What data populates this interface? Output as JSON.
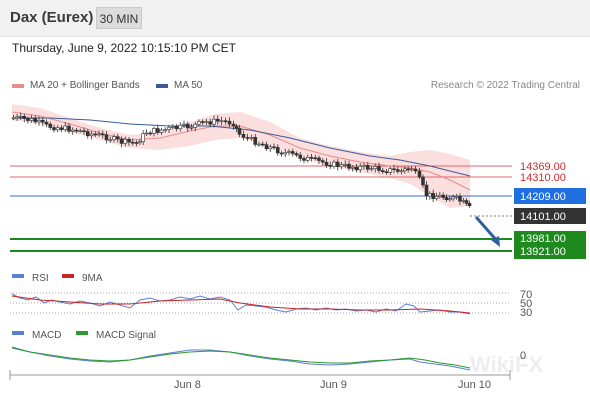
{
  "header": {
    "title": "Dax (Eurex)",
    "timeframe": "30 MIN"
  },
  "timestamp": "Thursday, June 9, 2022 10:15:10 PM CET",
  "legend": {
    "ma_bb": "MA 20 + Bollinger Bands",
    "ma_bb_color": "#e88c8c",
    "ma50": "MA 50",
    "ma50_color": "#3a5a9a"
  },
  "credit": "Research © 2022 Trading Central",
  "levels": [
    {
      "label": "14369.00",
      "style": "resistance",
      "color": "#d22b2b"
    },
    {
      "label": "14310.00",
      "style": "resistance",
      "color": "#d22b2b"
    },
    {
      "label": "14209.00",
      "style": "pivot",
      "color": "#1f6fe0"
    },
    {
      "label": "14101.00",
      "style": "last",
      "color": "#333333"
    },
    {
      "label": "13981.00",
      "style": "support",
      "color": "#1e8a1e"
    },
    {
      "label": "13921.00",
      "style": "support",
      "color": "#1e8a1e"
    }
  ],
  "rsi_panel": {
    "rsi_label": "RSI",
    "rsi_color": "#5a7fd4",
    "ma_label": "9MA",
    "ma_color": "#cc2222",
    "levels": [
      "70",
      "50",
      "30"
    ]
  },
  "macd_panel": {
    "macd_label": "MACD",
    "macd_color": "#5a7fd4",
    "signal_label": "MACD Signal",
    "signal_color": "#2a9a2a",
    "zero_label": "0"
  },
  "x_axis": [
    "Jun 8",
    "Jun 9",
    "Jun 10"
  ],
  "watermark": "WikiFX"
}
